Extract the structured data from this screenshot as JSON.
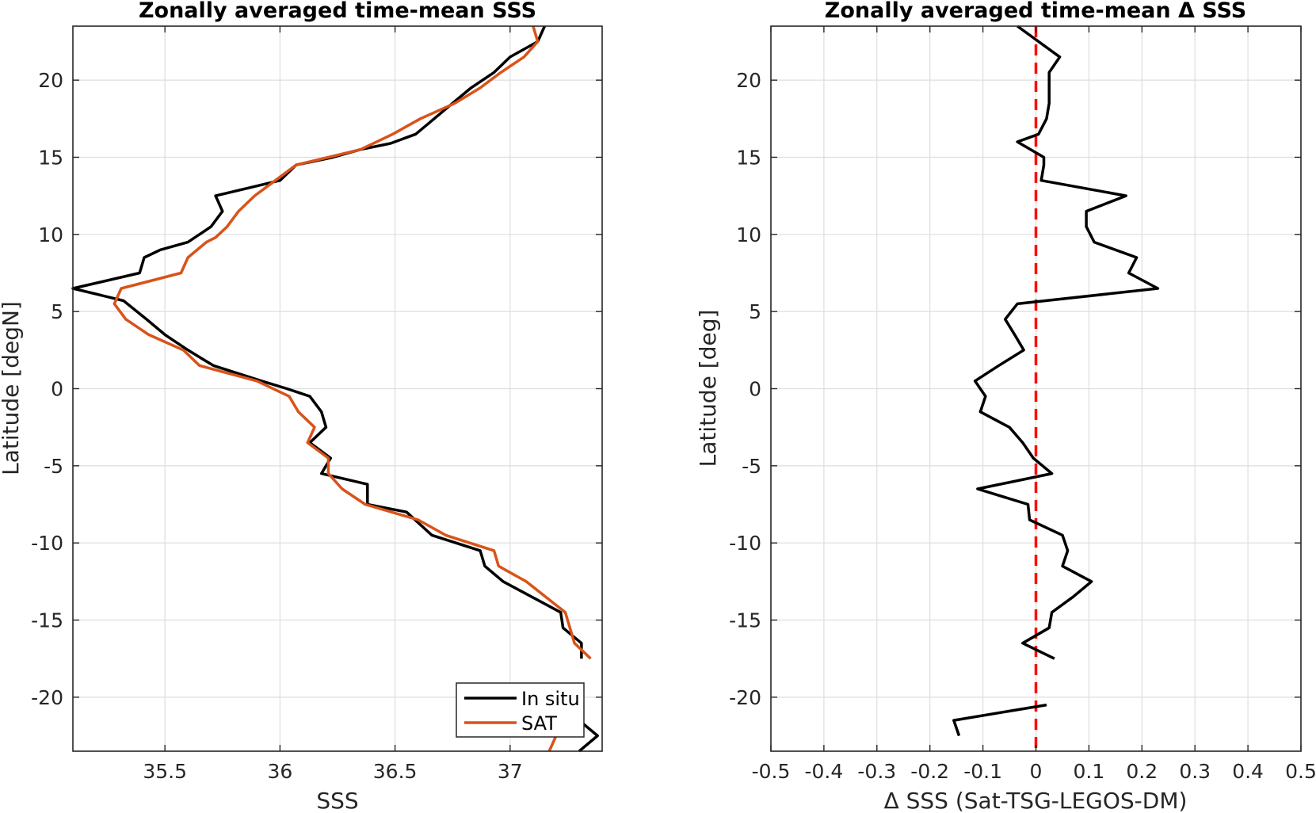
{
  "chart_data": [
    {
      "type": "line",
      "title": "Zonally averaged time-mean SSS",
      "xlabel": "SSS",
      "ylabel": "Latitude [degN]",
      "xlim": [
        35.1,
        37.4
      ],
      "ylim": [
        -23.5,
        23.5
      ],
      "xticks": [
        35.5,
        36,
        36.5,
        37
      ],
      "xtick_labels": [
        "35.5",
        "36",
        "36.5",
        "37"
      ],
      "yticks": [
        -20,
        -15,
        -10,
        -5,
        0,
        5,
        10,
        15,
        20
      ],
      "ytick_labels": [
        "-20",
        "-15",
        "-10",
        "-5",
        "0",
        "5",
        "10",
        "15",
        "20"
      ],
      "grid": true,
      "legend": "bottom-right",
      "series": [
        {
          "name": "In situ",
          "color": "#000000",
          "points": [
            [
              37.15,
              23.5
            ],
            [
              37.12,
              22.5
            ],
            [
              37.0,
              21.5
            ],
            [
              36.93,
              20.5
            ],
            [
              36.83,
              19.5
            ],
            [
              36.75,
              18.5
            ],
            [
              36.67,
              17.5
            ],
            [
              36.59,
              16.5
            ],
            [
              36.48,
              15.9
            ],
            [
              36.35,
              15.5
            ],
            [
              36.23,
              15
            ],
            [
              36.07,
              14.5
            ],
            [
              36.0,
              13.5
            ],
            [
              35.86,
              13
            ],
            [
              35.72,
              12.5
            ],
            [
              35.75,
              11.5
            ],
            [
              35.7,
              10.5
            ],
            [
              35.6,
              9.5
            ],
            [
              35.48,
              9
            ],
            [
              35.41,
              8.5
            ],
            [
              35.39,
              7.5
            ],
            [
              35.1,
              6.5
            ],
            [
              35.32,
              5.7
            ],
            [
              35.42,
              4.5
            ],
            [
              35.5,
              3.5
            ],
            [
              35.6,
              2.5
            ],
            [
              35.71,
              1.5
            ],
            [
              35.92,
              0.5
            ],
            [
              36.03,
              0
            ],
            [
              36.13,
              -0.5
            ],
            [
              36.18,
              -1.5
            ],
            [
              36.2,
              -2.5
            ],
            [
              36.13,
              -3.5
            ],
            [
              36.22,
              -4.5
            ],
            [
              36.18,
              -5.5
            ],
            [
              36.38,
              -6.2
            ],
            [
              36.38,
              -7.5
            ],
            [
              36.55,
              -8
            ],
            [
              36.66,
              -9.5
            ],
            [
              36.87,
              -10.5
            ],
            [
              36.89,
              -11.5
            ],
            [
              36.97,
              -12.5
            ],
            [
              37.22,
              -14.5
            ],
            [
              37.23,
              -15.5
            ],
            [
              37.31,
              -16.5
            ],
            [
              37.31,
              -17.5
            ]
          ]
        },
        {
          "name": "",
          "color": "#000000",
          "points": [
            [
              37.3,
              -23.5
            ],
            [
              37.38,
              -22.5
            ],
            [
              37.3,
              -21.5
            ]
          ]
        },
        {
          "name": "SAT",
          "color": "#d95319",
          "points": [
            [
              37.1,
              23.5
            ],
            [
              37.12,
              22.5
            ],
            [
              37.06,
              21.5
            ],
            [
              36.96,
              20.5
            ],
            [
              36.87,
              19.5
            ],
            [
              36.76,
              18.5
            ],
            [
              36.61,
              17.5
            ],
            [
              36.49,
              16.5
            ],
            [
              36.35,
              15.5
            ],
            [
              36.21,
              15
            ],
            [
              36.07,
              14.5
            ],
            [
              35.98,
              13.5
            ],
            [
              35.89,
              12.5
            ],
            [
              35.82,
              11.5
            ],
            [
              35.77,
              10.5
            ],
            [
              35.72,
              9.8
            ],
            [
              35.68,
              9.5
            ],
            [
              35.6,
              8.5
            ],
            [
              35.57,
              7.5
            ],
            [
              35.31,
              6.5
            ],
            [
              35.28,
              5.5
            ],
            [
              35.33,
              4.5
            ],
            [
              35.43,
              3.5
            ],
            [
              35.58,
              2.5
            ],
            [
              35.65,
              1.5
            ],
            [
              35.9,
              0.5
            ],
            [
              36.04,
              -0.5
            ],
            [
              36.08,
              -1.5
            ],
            [
              36.15,
              -2.5
            ],
            [
              36.12,
              -3.5
            ],
            [
              36.21,
              -4.5
            ],
            [
              36.21,
              -5.5
            ],
            [
              36.27,
              -6.5
            ],
            [
              36.37,
              -7.5
            ],
            [
              36.6,
              -8.5
            ],
            [
              36.72,
              -9.5
            ],
            [
              36.93,
              -10.5
            ],
            [
              36.95,
              -11.5
            ],
            [
              37.07,
              -12.5
            ],
            [
              37.24,
              -14.5
            ],
            [
              37.26,
              -15.5
            ],
            [
              37.28,
              -16.5
            ],
            [
              37.35,
              -17.5
            ]
          ]
        },
        {
          "name": "",
          "color": "#d95319",
          "points": [
            [
              37.17,
              -23.5
            ],
            [
              37.23,
              -21.5
            ]
          ]
        }
      ]
    },
    {
      "type": "line",
      "title": "Zonally averaged time-mean Δ SSS",
      "xlabel": "Δ SSS (Sat-TSG-LEGOS-DM)",
      "ylabel": "Latitude [deg]",
      "xlim": [
        -0.5,
        0.5
      ],
      "ylim": [
        -23.5,
        23.5
      ],
      "xticks": [
        -0.5,
        -0.4,
        -0.3,
        -0.2,
        -0.1,
        0,
        0.1,
        0.2,
        0.3,
        0.4,
        0.5
      ],
      "xtick_labels": [
        "-0.5",
        "-0.4",
        "-0.3",
        "-0.2",
        "-0.1",
        "0",
        "0.1",
        "0.2",
        "0.3",
        "0.4",
        "0.5"
      ],
      "yticks": [
        -20,
        -15,
        -10,
        -5,
        0,
        5,
        10,
        15,
        20
      ],
      "ytick_labels": [
        "-20",
        "-15",
        "-10",
        "-5",
        "0",
        "5",
        "10",
        "15",
        "20"
      ],
      "grid": true,
      "series": [
        {
          "name": "",
          "color": "#000000",
          "points": [
            [
              -0.035,
              23.5
            ],
            [
              0.045,
              21.5
            ],
            [
              0.025,
              20.5
            ],
            [
              0.025,
              19.5
            ],
            [
              0.025,
              18.5
            ],
            [
              0.02,
              17.5
            ],
            [
              0.005,
              16.5
            ],
            [
              -0.035,
              16
            ],
            [
              0.015,
              15
            ],
            [
              0.015,
              14.5
            ],
            [
              0.01,
              13.5
            ],
            [
              0.17,
              12.5
            ],
            [
              0.095,
              11.5
            ],
            [
              0.095,
              10.5
            ],
            [
              0.11,
              9.5
            ],
            [
              0.19,
              8.5
            ],
            [
              0.175,
              7.5
            ],
            [
              0.23,
              6.5
            ],
            [
              -0.035,
              5.5
            ],
            [
              -0.058,
              4.5
            ],
            [
              -0.04,
              3.5
            ],
            [
              -0.023,
              2.5
            ],
            [
              -0.07,
              1.5
            ],
            [
              -0.115,
              0.5
            ],
            [
              -0.095,
              -0.5
            ],
            [
              -0.105,
              -1.5
            ],
            [
              -0.05,
              -2.5
            ],
            [
              -0.025,
              -3.5
            ],
            [
              -0.005,
              -4.5
            ],
            [
              0.03,
              -5.5
            ],
            [
              -0.11,
              -6.5
            ],
            [
              -0.015,
              -7.5
            ],
            [
              -0.012,
              -8.5
            ],
            [
              0.05,
              -9.5
            ],
            [
              0.06,
              -10.5
            ],
            [
              0.05,
              -11.5
            ],
            [
              0.105,
              -12.5
            ],
            [
              0.07,
              -13.5
            ],
            [
              0.03,
              -14.5
            ],
            [
              0.025,
              -15.5
            ],
            [
              -0.025,
              -16.5
            ],
            [
              0.035,
              -17.5
            ]
          ]
        },
        {
          "name": "",
          "color": "#000000",
          "points": [
            [
              0.02,
              -20.5
            ],
            [
              -0.155,
              -21.5
            ],
            [
              -0.145,
              -22.5
            ]
          ]
        }
      ],
      "reference_line": {
        "x": 0,
        "color": "#ff0000",
        "style": "dashed"
      }
    }
  ]
}
